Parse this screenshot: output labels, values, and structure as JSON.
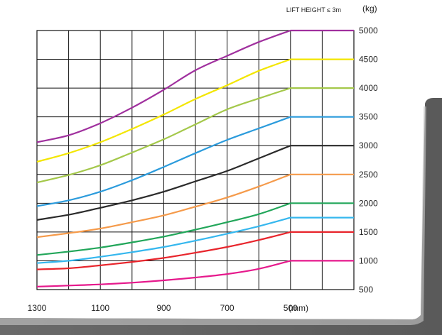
{
  "chart_data": {
    "type": "line",
    "title": "",
    "annotation": "LIFT HEIGHT ≤ 3m",
    "xlabel": "",
    "ylabel": "",
    "x_unit": "(mm)",
    "y_unit": "(kg)",
    "xlim": [
      1300,
      300
    ],
    "ylim": [
      500,
      5000
    ],
    "x_ticks": [
      "1300",
      "1100",
      "900",
      "700",
      "500"
    ],
    "y_ticks": [
      "5000",
      "4500",
      "4000",
      "3500",
      "3000",
      "2500",
      "2000",
      "1500",
      "1000",
      "500"
    ],
    "grid": true,
    "series": [
      {
        "capacity": 5000,
        "color": "#a0309e",
        "x": [
          1300,
          1200,
          1100,
          1000,
          900,
          800,
          700,
          600,
          500,
          300
        ],
        "y": [
          3060,
          3180,
          3390,
          3660,
          3970,
          4310,
          4560,
          4800,
          5000,
          5000
        ]
      },
      {
        "capacity": 4500,
        "color": "#f3e600",
        "x": [
          1300,
          1200,
          1100,
          1000,
          900,
          800,
          700,
          600,
          500,
          300
        ],
        "y": [
          2720,
          2870,
          3060,
          3290,
          3540,
          3810,
          4050,
          4300,
          4500,
          4500
        ]
      },
      {
        "capacity": 4000,
        "color": "#a4c84a",
        "x": [
          1300,
          1200,
          1100,
          1000,
          900,
          800,
          700,
          600,
          500,
          300
        ],
        "y": [
          2360,
          2490,
          2660,
          2880,
          3110,
          3370,
          3630,
          3820,
          4000,
          4000
        ]
      },
      {
        "capacity": 3500,
        "color": "#2b9bdc",
        "x": [
          1300,
          1200,
          1100,
          1000,
          900,
          800,
          700,
          600,
          500,
          300
        ],
        "y": [
          1950,
          2050,
          2200,
          2400,
          2630,
          2870,
          3100,
          3300,
          3500,
          3500
        ]
      },
      {
        "capacity": 3000,
        "color": "#2b2b2b",
        "x": [
          1300,
          1200,
          1100,
          1000,
          900,
          800,
          700,
          600,
          500,
          300
        ],
        "y": [
          1710,
          1800,
          1920,
          2050,
          2200,
          2380,
          2560,
          2780,
          3000,
          3000
        ]
      },
      {
        "capacity": 2500,
        "color": "#f59a4a",
        "x": [
          1300,
          1200,
          1100,
          1000,
          900,
          800,
          700,
          600,
          500,
          300
        ],
        "y": [
          1410,
          1480,
          1560,
          1670,
          1790,
          1940,
          2100,
          2290,
          2500,
          2500
        ]
      },
      {
        "capacity": 2000,
        "color": "#22a65a",
        "x": [
          1300,
          1200,
          1100,
          1000,
          900,
          800,
          700,
          600,
          500,
          300
        ],
        "y": [
          1100,
          1160,
          1230,
          1320,
          1420,
          1540,
          1670,
          1810,
          2000,
          2000
        ]
      },
      {
        "capacity": 1750,
        "color": "#35b7ee",
        "x": [
          1300,
          1200,
          1100,
          1000,
          900,
          800,
          700,
          600,
          500,
          300
        ],
        "y": [
          960,
          1000,
          1070,
          1150,
          1240,
          1350,
          1470,
          1600,
          1750,
          1750
        ]
      },
      {
        "capacity": 1500,
        "color": "#e8252c",
        "x": [
          1300,
          1200,
          1100,
          1000,
          900,
          800,
          700,
          600,
          500,
          300
        ],
        "y": [
          850,
          870,
          920,
          980,
          1050,
          1140,
          1240,
          1360,
          1500,
          1500
        ]
      },
      {
        "capacity": 1000,
        "color": "#e6198c",
        "x": [
          1300,
          1200,
          1100,
          1000,
          900,
          800,
          700,
          600,
          500,
          300
        ],
        "y": [
          550,
          570,
          590,
          620,
          660,
          710,
          770,
          860,
          1000,
          1000
        ]
      }
    ]
  }
}
